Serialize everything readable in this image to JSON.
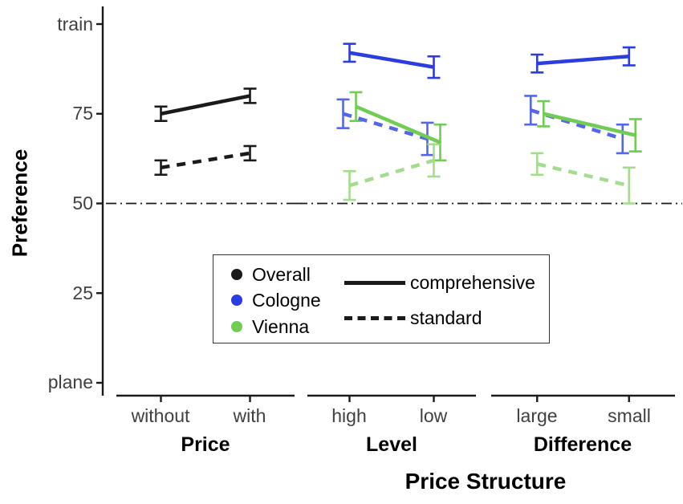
{
  "chart_data": {
    "type": "line",
    "title": "",
    "xlabel": "Price Structure",
    "ylabel": "Preference",
    "ylim": [
      0,
      100
    ],
    "grid": false,
    "reference_line": 50,
    "yticks": [
      {
        "value": 100,
        "label": "train"
      },
      {
        "value": 75,
        "label": "75"
      },
      {
        "value": 50,
        "label": "50"
      },
      {
        "value": 25,
        "label": "25"
      },
      {
        "value": 0,
        "label": "plane"
      }
    ],
    "facets": [
      {
        "label": "Price",
        "categories": [
          "without",
          "with"
        ],
        "series": [
          {
            "city": "Overall",
            "linetype": "comprehensive",
            "color": "#1a1a1a",
            "dashed": false,
            "dx": 0,
            "values": [
              75,
              80
            ],
            "errors": [
              2,
              2
            ]
          },
          {
            "city": "Overall",
            "linetype": "standard",
            "color": "#1a1a1a",
            "dashed": true,
            "dx": 0,
            "values": [
              60,
              64
            ],
            "errors": [
              2,
              2
            ]
          }
        ]
      },
      {
        "label": "Level",
        "categories": [
          "high",
          "low"
        ],
        "series": [
          {
            "city": "Cologne",
            "linetype": "comprehensive",
            "color": "#2b3ce0",
            "dashed": false,
            "dx": 0,
            "values": [
              92,
              88
            ],
            "errors": [
              2.5,
              3
            ]
          },
          {
            "city": "Cologne",
            "linetype": "standard",
            "color": "#5566e8",
            "dashed": true,
            "dx": -8,
            "values": [
              75,
              68
            ],
            "errors": [
              4,
              4.5
            ]
          },
          {
            "city": "Vienna",
            "linetype": "comprehensive",
            "color": "#70cc52",
            "dashed": false,
            "dx": 8,
            "values": [
              77,
              67
            ],
            "errors": [
              4,
              5
            ]
          },
          {
            "city": "Vienna",
            "linetype": "standard",
            "color": "#a4dc8e",
            "dashed": true,
            "dx": 0,
            "values": [
              55,
              62
            ],
            "errors": [
              4,
              4.5
            ]
          }
        ]
      },
      {
        "label": "Difference",
        "categories": [
          "large",
          "small"
        ],
        "series": [
          {
            "city": "Cologne",
            "linetype": "comprehensive",
            "color": "#2b3ce0",
            "dashed": false,
            "dx": 0,
            "values": [
              89,
              91
            ],
            "errors": [
              2.5,
              2.5
            ]
          },
          {
            "city": "Cologne",
            "linetype": "standard",
            "color": "#5566e8",
            "dashed": true,
            "dx": -8,
            "values": [
              76,
              68
            ],
            "errors": [
              4,
              4
            ]
          },
          {
            "city": "Vienna",
            "linetype": "comprehensive",
            "color": "#70cc52",
            "dashed": false,
            "dx": 8,
            "values": [
              75,
              69
            ],
            "errors": [
              3.5,
              4.5
            ]
          },
          {
            "city": "Vienna",
            "linetype": "standard",
            "color": "#a4dc8e",
            "dashed": true,
            "dx": 0,
            "values": [
              61,
              55
            ],
            "errors": [
              3,
              5
            ]
          }
        ]
      }
    ],
    "legend": {
      "position": "inside-center",
      "colors": [
        {
          "label": "Overall",
          "color": "#1a1a1a"
        },
        {
          "label": "Cologne",
          "color": "#2b3ce0"
        },
        {
          "label": "Vienna",
          "color": "#70cc52"
        }
      ],
      "linetypes": [
        {
          "label": "comprehensive",
          "dashed": false
        },
        {
          "label": "standard",
          "dashed": true
        }
      ]
    }
  }
}
